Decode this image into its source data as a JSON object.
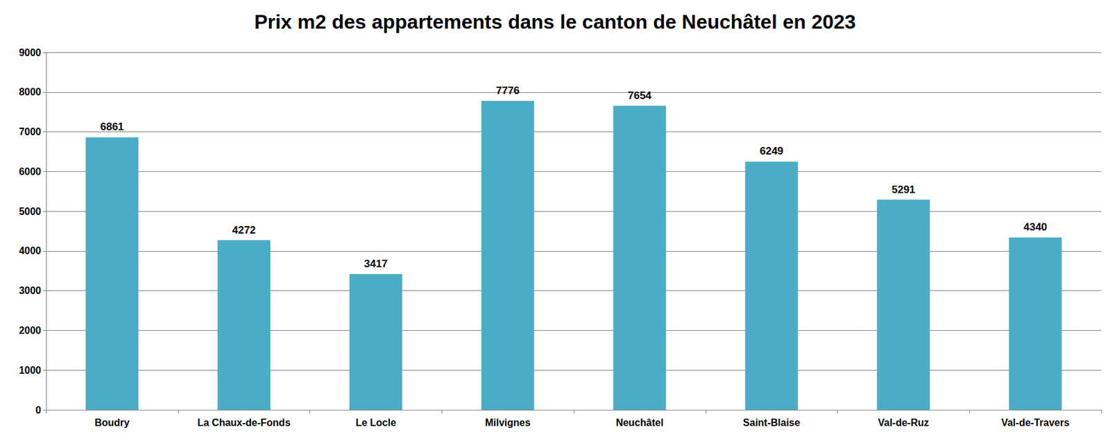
{
  "chart_data": {
    "type": "bar",
    "title": "Prix m2 des appartements dans le canton de Neuchâtel en 2023",
    "categories": [
      "Boudry",
      "La Chaux-de-Fonds",
      "Le Locle",
      "Milvignes",
      "Neuchâtel",
      "Saint-Blaise",
      "Val-de-Ruz",
      "Val-de-Travers"
    ],
    "values": [
      6861,
      4272,
      3417,
      7776,
      7654,
      6249,
      5291,
      4340
    ],
    "color": "#4bacc6",
    "ylim": [
      0,
      9000
    ],
    "yticks": [
      0,
      1000,
      2000,
      3000,
      4000,
      5000,
      6000,
      7000,
      8000,
      9000
    ],
    "grid": true,
    "data_labels": true
  }
}
